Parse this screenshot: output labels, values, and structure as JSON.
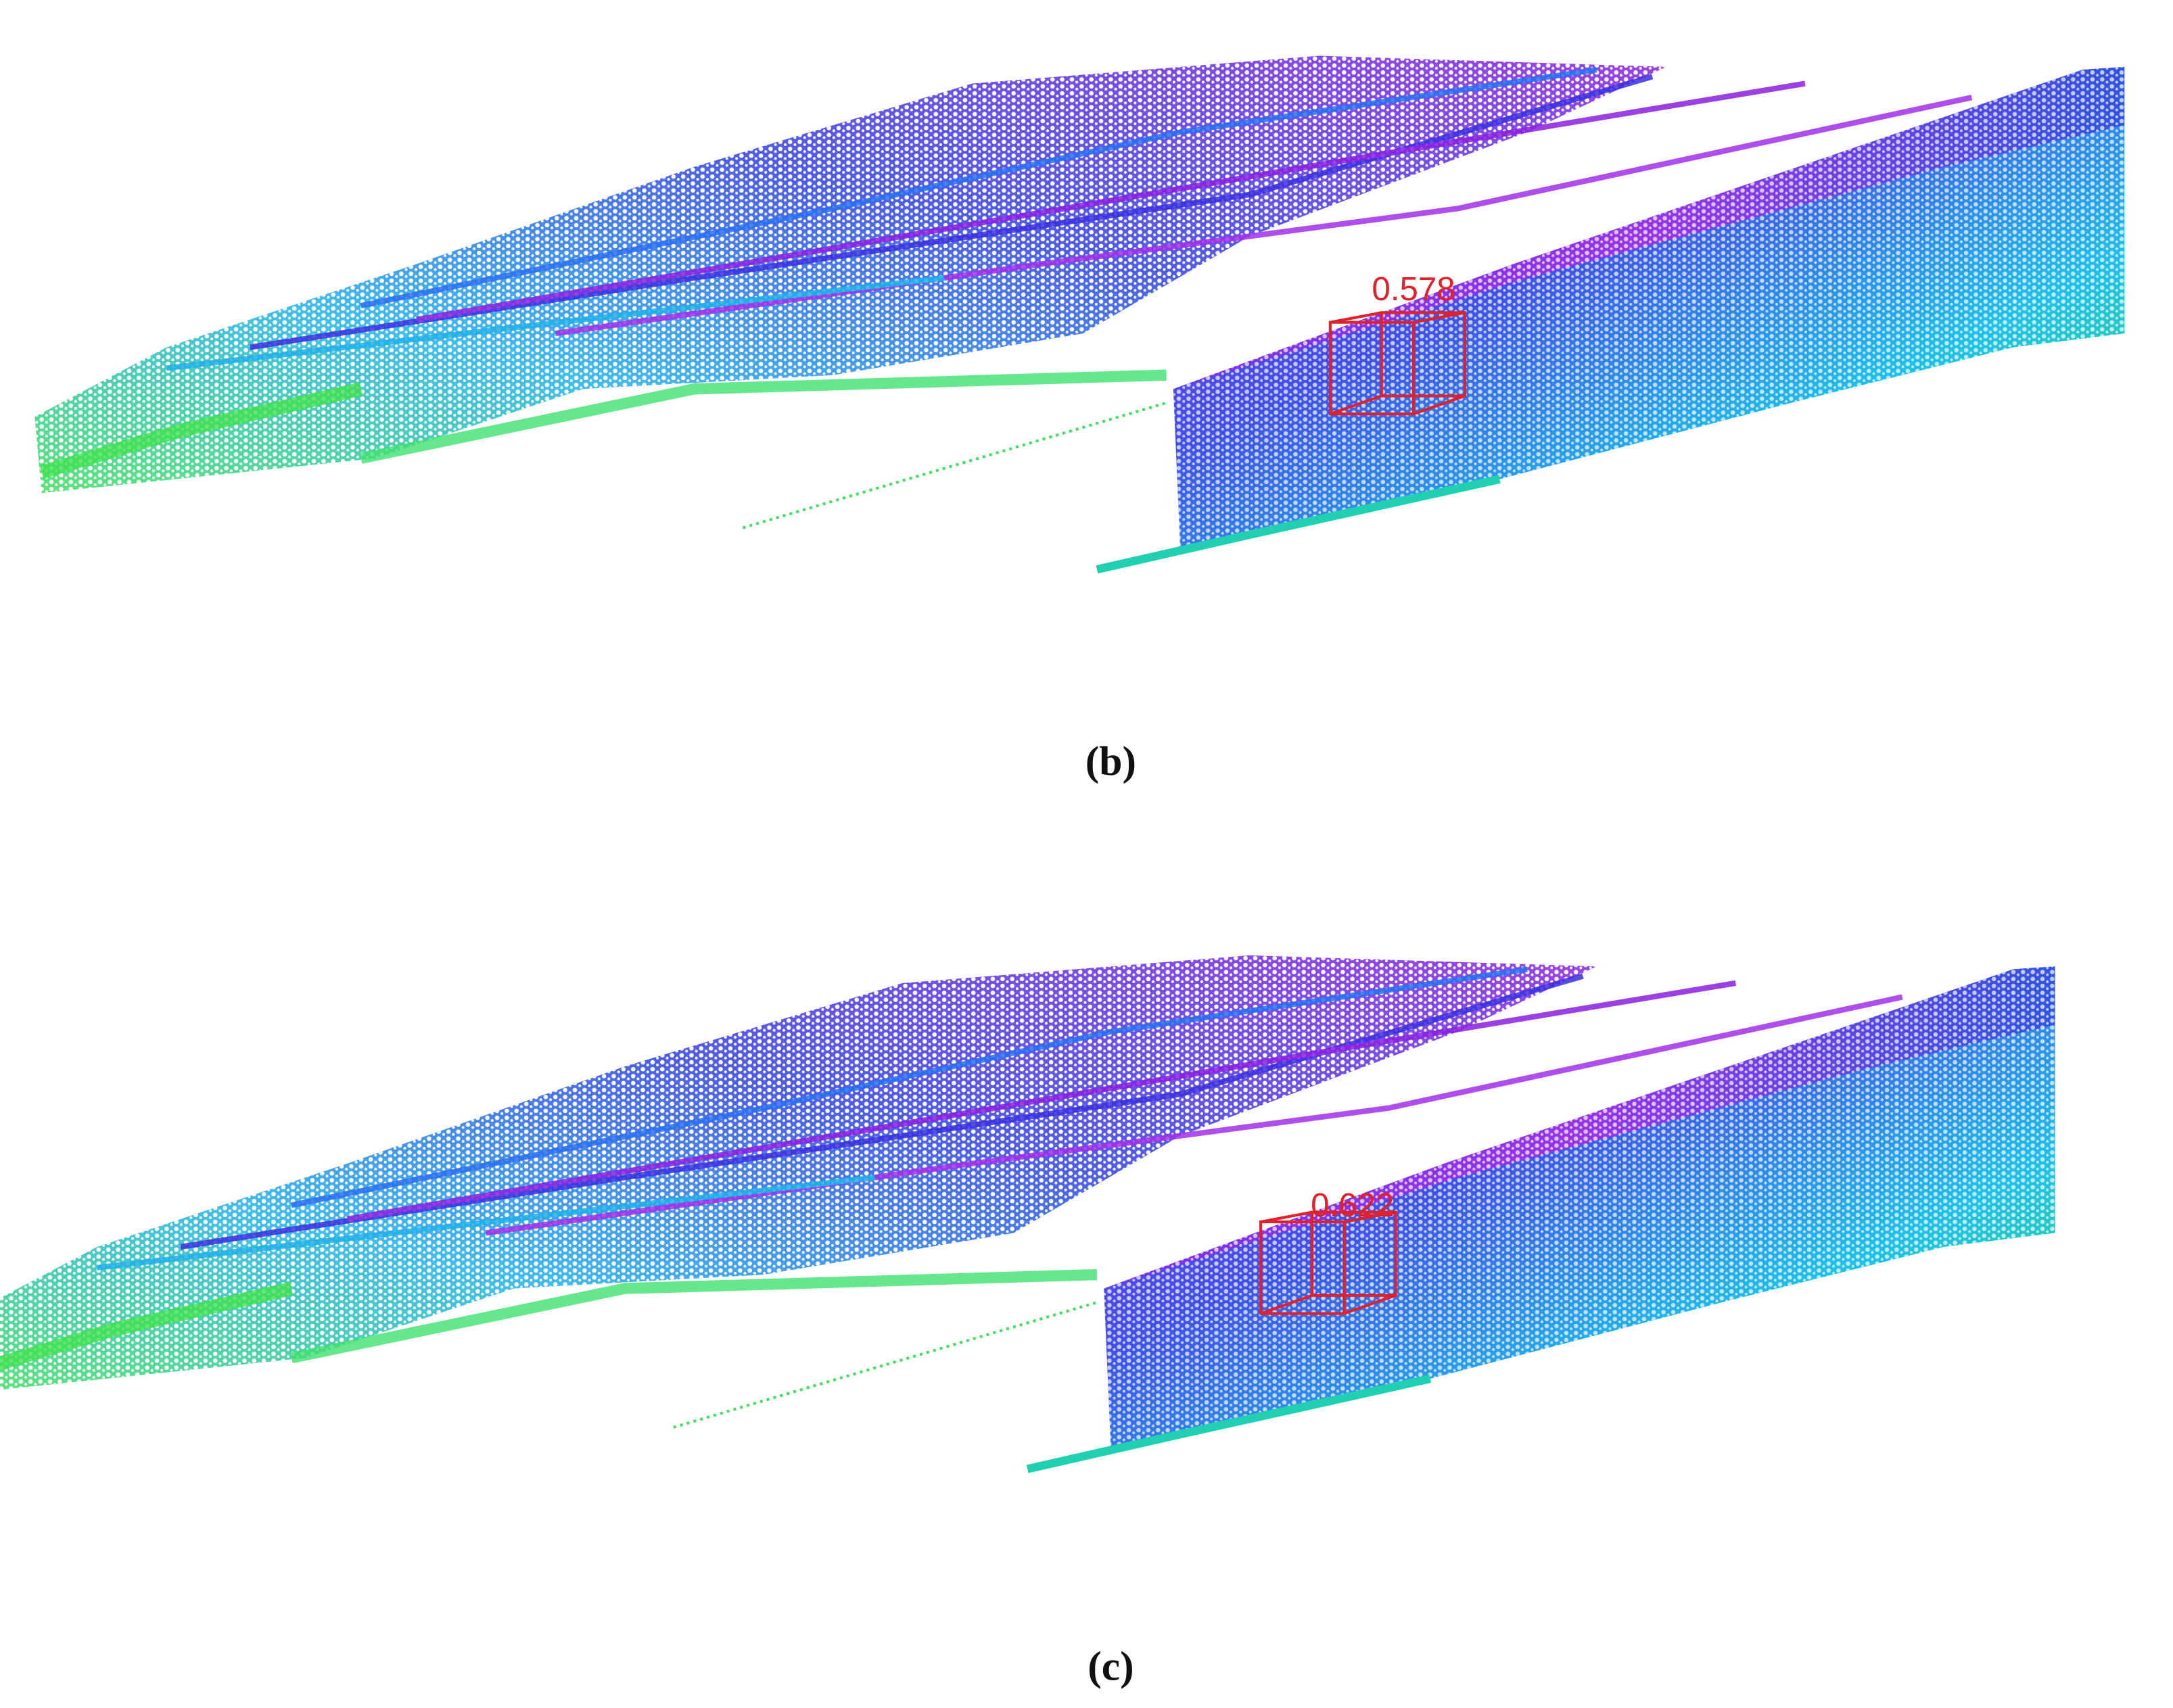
{
  "panels": [
    {
      "score": "0.578",
      "caption": "(b)"
    },
    {
      "score": "0.622",
      "caption": "(c)"
    }
  ]
}
